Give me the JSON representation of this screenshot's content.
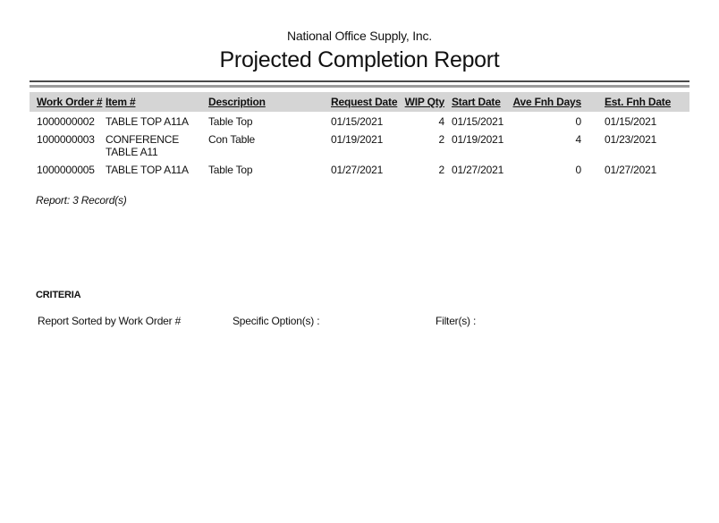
{
  "company": "National Office Supply, Inc.",
  "title": "Projected Completion Report",
  "table": {
    "columns": [
      "Work Order #",
      "Item #",
      "Description",
      "Request Date",
      "WIP Qty",
      "Start Date",
      "Ave Fnh Days",
      "Est. Fnh Date"
    ],
    "rows": [
      {
        "work_order": "1000000002",
        "item": "TABLE TOP A11A",
        "description": "Table Top",
        "request_date": "01/15/2021",
        "wip_qty": "4",
        "start_date": "01/15/2021",
        "ave_fnh_days": "0",
        "est_fnh_date": "01/15/2021"
      },
      {
        "work_order": "1000000003",
        "item": "CONFERENCE TABLE A11",
        "description": "Con Table",
        "request_date": "01/19/2021",
        "wip_qty": "2",
        "start_date": "01/19/2021",
        "ave_fnh_days": "4",
        "est_fnh_date": "01/23/2021"
      },
      {
        "work_order": "1000000005",
        "item": "TABLE TOP A11A",
        "description": "Table Top",
        "request_date": "01/27/2021",
        "wip_qty": "2",
        "start_date": "01/27/2021",
        "ave_fnh_days": "0",
        "est_fnh_date": "01/27/2021"
      }
    ]
  },
  "summary": "Report: 3 Record(s)",
  "criteria": {
    "heading": "CRITERIA",
    "sorted_by": "Report Sorted by Work Order #",
    "specific_options_label": "Specific Option(s) :",
    "filters_label": "Filter(s) :"
  },
  "colors": {
    "header_band": "#d5d5d5",
    "rule_dark": "#4a4a4a",
    "rule_gray": "#9b9b9b",
    "text": "#111111"
  }
}
